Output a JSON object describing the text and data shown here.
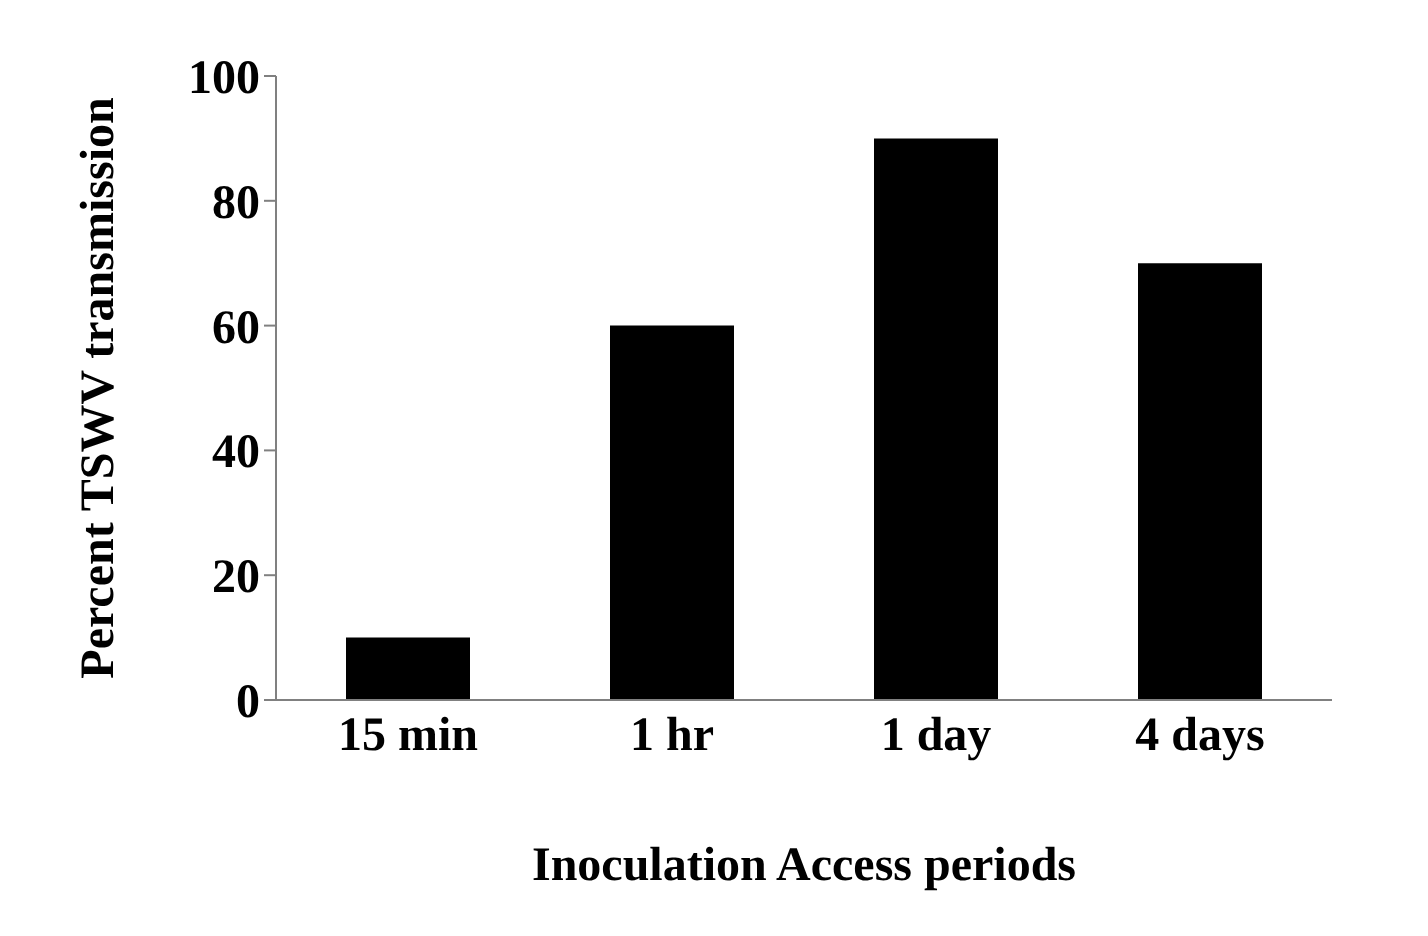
{
  "chart_data": {
    "type": "bar",
    "xlabel": "Inoculation Access periods",
    "ylabel": "Percent TSWV transmission",
    "categories": [
      "15 min",
      "1 hr",
      "1 day",
      "4 days"
    ],
    "values": [
      10,
      60,
      90,
      70
    ],
    "color": "#000000",
    "ylim": [
      0,
      100
    ],
    "yticks": [
      0,
      20,
      40,
      60,
      80,
      100
    ],
    "grid": false
  }
}
